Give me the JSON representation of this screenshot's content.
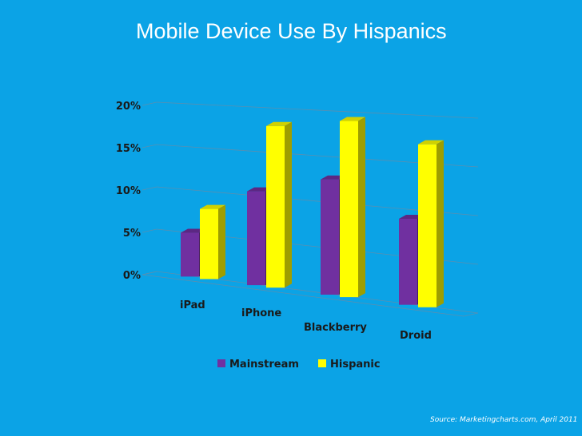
{
  "slide": {
    "title": "Mobile Device Use By Hispanics",
    "source": "Source: Marketingcharts.com, April 2011",
    "background": "#0ba3e6"
  },
  "chart_data": {
    "type": "bar",
    "title": "Mobile Device Use By Hispanics",
    "categories": [
      "iPad",
      "iPhone",
      "Blackberry",
      "Droid"
    ],
    "series": [
      {
        "name": "Mainstream",
        "values": [
          5,
          10.5,
          12.5,
          9
        ],
        "color": "#7030a0"
      },
      {
        "name": "Hispanic",
        "values": [
          8,
          18,
          19,
          17
        ],
        "color": "#ffff00"
      }
    ],
    "yticks": [
      "0%",
      "5%",
      "10%",
      "15%",
      "20%"
    ],
    "ylim": [
      0,
      20
    ],
    "grid": true,
    "legend": "bottom",
    "style": "3d-perspective"
  }
}
